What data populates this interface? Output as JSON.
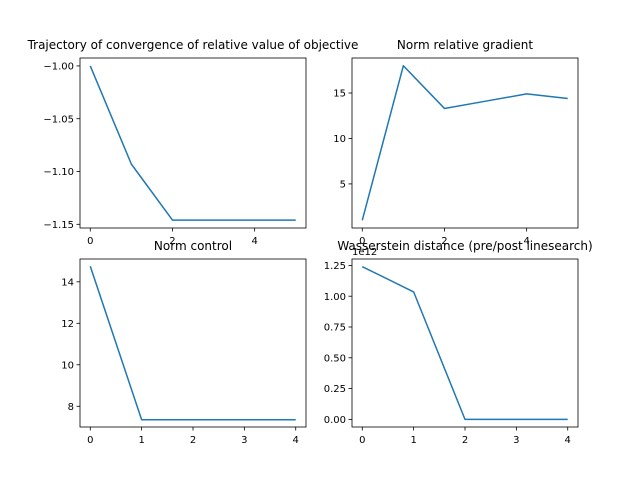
{
  "chart_data": [
    {
      "type": "line",
      "title": "Trajectory of convergence of relative value of objective",
      "color": "#1f77b4",
      "x": [
        0,
        1,
        2,
        3,
        4,
        5
      ],
      "values": [
        -1.0,
        -1.093,
        -1.146,
        -1.146,
        -1.146,
        -1.146
      ],
      "xlim": [
        -0.25,
        5.25
      ],
      "ylim": [
        -1.1535,
        -0.9925
      ],
      "xticks": [
        0,
        2,
        4
      ],
      "xtick_labels": [
        "0",
        "2",
        "4"
      ],
      "yticks": [
        -1.0,
        -1.05,
        -1.1,
        -1.15
      ],
      "ytick_labels": [
        "−1.00",
        "−1.05",
        "−1.10",
        "−1.15"
      ],
      "offset_text": "",
      "grid": false
    },
    {
      "type": "line",
      "title": "Norm relative gradient",
      "color": "#1f77b4",
      "x": [
        0,
        1,
        2,
        3,
        4,
        5
      ],
      "values": [
        1.0,
        18.0,
        13.3,
        14.1,
        14.9,
        14.4
      ],
      "xlim": [
        -0.25,
        5.25
      ],
      "ylim": [
        0.15,
        18.85
      ],
      "xticks": [
        0,
        2,
        4
      ],
      "xtick_labels": [
        "0",
        "2",
        "4"
      ],
      "yticks": [
        5,
        10,
        15
      ],
      "ytick_labels": [
        "5",
        "10",
        "15"
      ],
      "offset_text": "",
      "grid": false
    },
    {
      "type": "line",
      "title": "Norm control",
      "color": "#1f77b4",
      "x": [
        0,
        1,
        2,
        3,
        4
      ],
      "values": [
        14.75,
        7.35,
        7.35,
        7.35,
        7.35
      ],
      "xlim": [
        -0.2,
        4.2
      ],
      "ylim": [
        7.0,
        15.1
      ],
      "xticks": [
        0,
        1,
        2,
        3,
        4
      ],
      "xtick_labels": [
        "0",
        "1",
        "2",
        "3",
        "4"
      ],
      "yticks": [
        8,
        10,
        12,
        14
      ],
      "ytick_labels": [
        "8",
        "10",
        "12",
        "14"
      ],
      "offset_text": "",
      "grid": false
    },
    {
      "type": "line",
      "title": "Wasserstein distance (pre/post linesearch)",
      "color": "#1f77b4",
      "x": [
        0,
        1,
        2,
        3,
        4
      ],
      "values": [
        1.24,
        1.035,
        0.0,
        0.0,
        0.0
      ],
      "xlim": [
        -0.2,
        4.2
      ],
      "ylim": [
        -0.062,
        1.302
      ],
      "xticks": [
        0,
        1,
        2,
        3,
        4
      ],
      "xtick_labels": [
        "0",
        "1",
        "2",
        "3",
        "4"
      ],
      "yticks": [
        0.0,
        0.25,
        0.5,
        0.75,
        1.0,
        1.25
      ],
      "ytick_labels": [
        "0.00",
        "0.25",
        "0.50",
        "0.75",
        "1.00",
        "1.25"
      ],
      "offset_text": "1e12",
      "grid": false
    }
  ]
}
